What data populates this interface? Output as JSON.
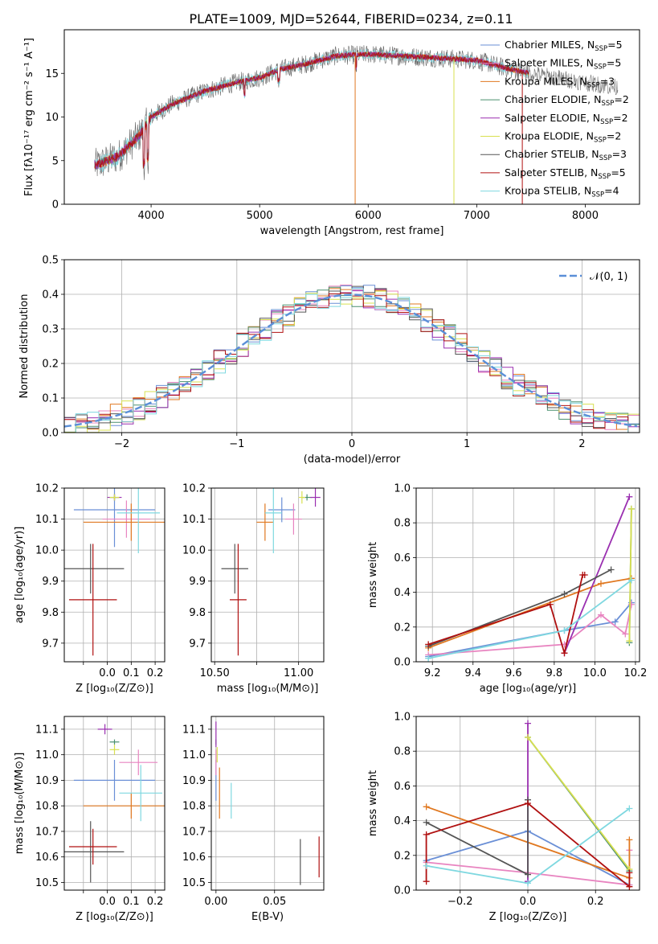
{
  "colors": {
    "chabrier_miles": "#6a8fd6",
    "salpeter_miles": "#e884c0",
    "kroupa_miles": "#e07820",
    "chabrier_elodie": "#4a8f6e",
    "salpeter_elodie": "#9a2fb0",
    "kroupa_elodie": "#d8e050",
    "chabrier_stelib": "#555555",
    "salpeter_stelib": "#b01010",
    "kroupa_stelib": "#7fd8e0",
    "normal_curve": "#5b8fd8",
    "grid": "#b0b0b0"
  },
  "chart_data": [
    {
      "id": "spectrum",
      "type": "line",
      "title": "PLATE=1009, MJD=52644, FIBERID=0234, z=0.11",
      "xlabel": "wavelength [Angstrom, rest frame]",
      "ylabel": "Flux [fλ10⁻¹⁷ erg cm⁻² s⁻¹ A⁻¹]",
      "xlim": [
        3200,
        8500
      ],
      "ylim": [
        0,
        20
      ],
      "xticks": [
        4000,
        5000,
        6000,
        7000,
        8000
      ],
      "yticks": [
        0,
        5,
        10,
        15
      ],
      "grid": false,
      "legend_position": "right",
      "legend": [
        {
          "label": "Chabrier MILES, N",
          "sub": "SSP",
          "suffix": "=5",
          "color_key": "chabrier_miles"
        },
        {
          "label": "Salpeter MILES, N",
          "sub": "SSP",
          "suffix": "=5",
          "color_key": "salpeter_miles"
        },
        {
          "label": "Kroupa MILES, N",
          "sub": "SSP",
          "suffix": "=3",
          "color_key": "kroupa_miles"
        },
        {
          "label": "Chabrier ELODIE, N",
          "sub": "SSP",
          "suffix": "=2",
          "color_key": "chabrier_elodie"
        },
        {
          "label": "Salpeter ELODIE, N",
          "sub": "SSP",
          "suffix": "=2",
          "color_key": "salpeter_elodie"
        },
        {
          "label": "Kroupa ELODIE, N",
          "sub": "SSP",
          "suffix": "=2",
          "color_key": "kroupa_elodie"
        },
        {
          "label": "Chabrier STELIB, N",
          "sub": "SSP",
          "suffix": "=3",
          "color_key": "chabrier_stelib"
        },
        {
          "label": "Salpeter STELIB, N",
          "sub": "SSP",
          "suffix": "=5",
          "color_key": "salpeter_stelib"
        },
        {
          "label": "Kroupa STELIB, N",
          "sub": "SSP",
          "suffix": "=4",
          "color_key": "kroupa_stelib"
        }
      ],
      "continuum_x": [
        3500,
        3700,
        3900,
        4000,
        4200,
        4500,
        4800,
        5000,
        5200,
        5400,
        5700,
        6000,
        6300,
        6600,
        7000,
        7300,
        7500
      ],
      "continuum_y": [
        4.5,
        5.5,
        8,
        10,
        11.5,
        13,
        14,
        14.5,
        15.5,
        16,
        17,
        17.2,
        17,
        16.8,
        16.5,
        15.5,
        15
      ]
    },
    {
      "id": "residuals",
      "type": "line",
      "xlabel": "(data-model)/error",
      "ylabel": "Normed distribution",
      "xlim": [
        -2.5,
        2.5
      ],
      "ylim": [
        0,
        0.5
      ],
      "xticks": [
        -2,
        -1,
        0,
        1,
        2
      ],
      "xticklabels": [
        "−2",
        "−1",
        "0",
        "1",
        "2"
      ],
      "yticks": [
        0.0,
        0.1,
        0.2,
        0.3,
        0.4,
        0.5
      ],
      "yticklabels": [
        "0.0",
        "0.1",
        "0.2",
        "0.3",
        "0.4",
        "0.5"
      ],
      "grid": true,
      "legend_position": "top-right",
      "legend": [
        {
          "label": "𝒩(0, 1)",
          "color_key": "normal_curve"
        }
      ],
      "curve": {
        "mean": 0,
        "sigma": 1
      }
    },
    {
      "id": "age_vs_z",
      "type": "scatter",
      "xlabel": "Z [log₁₀(Z/Z⊙)]",
      "ylabel": "age  [log₁₀(age/yr)]",
      "xlim": [
        -0.18,
        0.24
      ],
      "ylim": [
        9.64,
        10.2
      ],
      "xticks": [
        -0.1,
        0.0,
        0.1,
        0.2
      ],
      "xticklabels": [
        "",
        "0.0",
        "0.1",
        "0.2"
      ],
      "yticks": [
        9.7,
        9.8,
        9.9,
        10.0,
        10.1,
        10.2
      ],
      "yticklabels": [
        "9.7",
        "9.8",
        "9.9",
        "10.0",
        "10.1",
        "10.2"
      ],
      "grid": true,
      "points": [
        {
          "c": "chabrier_miles",
          "x": 0.03,
          "y": 10.13,
          "xerr": 0.17,
          "yerr": 0.12
        },
        {
          "c": "salpeter_miles",
          "x": 0.08,
          "y": 10.1,
          "xerr": 0.1,
          "yerr": 0.06
        },
        {
          "c": "kroupa_miles",
          "x": 0.1,
          "y": 10.09,
          "xerr": 0.2,
          "yerr": 0.06
        },
        {
          "c": "chabrier_elodie",
          "x": 0.03,
          "y": 10.17,
          "xerr": 0.02,
          "yerr": 0.01
        },
        {
          "c": "salpeter_elodie",
          "x": 0.03,
          "y": 10.17,
          "xerr": 0.03,
          "yerr": 0.01
        },
        {
          "c": "kroupa_elodie",
          "x": 0.03,
          "y": 10.17,
          "xerr": 0.02,
          "yerr": 0.01
        },
        {
          "c": "chabrier_stelib",
          "x": -0.07,
          "y": 9.94,
          "xerr": 0.14,
          "yerr": 0.08
        },
        {
          "c": "salpeter_stelib",
          "x": -0.06,
          "y": 9.84,
          "xerr": 0.1,
          "yerr": 0.18
        },
        {
          "c": "kroupa_stelib",
          "x": 0.13,
          "y": 10.12,
          "xerr": 0.09,
          "yerr": 0.13
        }
      ]
    },
    {
      "id": "age_vs_mass",
      "type": "scatter",
      "xlabel": "mass [log₁₀(M/M⊙)]",
      "xlim": [
        10.48,
        11.15
      ],
      "ylim": [
        9.64,
        10.2
      ],
      "xticks": [
        10.5,
        10.75,
        11.0
      ],
      "xticklabels": [
        "10.50",
        "",
        "11.00"
      ],
      "yticks": [
        9.7,
        9.8,
        9.9,
        10.0,
        10.1,
        10.2
      ],
      "yticklabels": [
        "9.7",
        "9.8",
        "9.9",
        "10.0",
        "10.1",
        "10.2"
      ],
      "grid": true,
      "points": [
        {
          "c": "chabrier_miles",
          "x": 10.9,
          "y": 10.13,
          "xerr": 0.08,
          "yerr": 0.04
        },
        {
          "c": "salpeter_miles",
          "x": 10.97,
          "y": 10.1,
          "xerr": 0.05,
          "yerr": 0.05
        },
        {
          "c": "kroupa_miles",
          "x": 10.8,
          "y": 10.09,
          "xerr": 0.05,
          "yerr": 0.06
        },
        {
          "c": "chabrier_elodie",
          "x": 11.05,
          "y": 10.17,
          "xerr": 0.03,
          "yerr": 0.01
        },
        {
          "c": "salpeter_elodie",
          "x": 11.1,
          "y": 10.17,
          "xerr": 0.03,
          "yerr": 0.03
        },
        {
          "c": "kroupa_elodie",
          "x": 11.02,
          "y": 10.17,
          "xerr": 0.02,
          "yerr": 0.02
        },
        {
          "c": "chabrier_stelib",
          "x": 10.62,
          "y": 9.94,
          "xerr": 0.08,
          "yerr": 0.08
        },
        {
          "c": "salpeter_stelib",
          "x": 10.64,
          "y": 9.84,
          "xerr": 0.05,
          "yerr": 0.18
        },
        {
          "c": "kroupa_stelib",
          "x": 10.85,
          "y": 10.12,
          "xerr": 0.05,
          "yerr": 0.13
        }
      ]
    },
    {
      "id": "massweight_vs_age",
      "type": "line",
      "xlabel": "age  [log₁₀(age/yr)]",
      "ylabel": "mass weight",
      "xlim": [
        9.12,
        10.22
      ],
      "ylim": [
        0,
        1.0
      ],
      "xticks": [
        9.2,
        9.4,
        9.6,
        9.8,
        10.0,
        10.2
      ],
      "xticklabels": [
        "9.2",
        "9.4",
        "9.6",
        "9.8",
        "10.0",
        "10.2"
      ],
      "yticks": [
        0.0,
        0.2,
        0.4,
        0.6,
        0.8,
        1.0
      ],
      "yticklabels": [
        "0.0",
        "0.2",
        "0.4",
        "0.6",
        "0.8",
        "1.0"
      ],
      "grid": true,
      "series": [
        {
          "c": "chabrier_miles",
          "x": [
            9.18,
            9.85,
            10.1,
            10.18
          ],
          "y": [
            0.03,
            0.18,
            0.23,
            0.34
          ]
        },
        {
          "c": "salpeter_miles",
          "x": [
            9.18,
            9.85,
            10.03,
            10.15,
            10.18
          ],
          "y": [
            0.04,
            0.1,
            0.27,
            0.16,
            0.33
          ]
        },
        {
          "c": "kroupa_miles",
          "x": [
            9.18,
            10.03,
            10.18
          ],
          "y": [
            0.08,
            0.45,
            0.48
          ]
        },
        {
          "c": "chabrier_elodie",
          "x": [
            10.17,
            10.18
          ],
          "y": [
            0.11,
            0.88
          ]
        },
        {
          "c": "salpeter_elodie",
          "x": [
            9.85,
            10.17
          ],
          "y": [
            0.05,
            0.95
          ]
        },
        {
          "c": "kroupa_elodie",
          "x": [
            10.17,
            10.18
          ],
          "y": [
            0.12,
            0.88
          ]
        },
        {
          "c": "chabrier_stelib",
          "x": [
            9.18,
            9.85,
            10.08
          ],
          "y": [
            0.09,
            0.39,
            0.53
          ]
        },
        {
          "c": "salpeter_stelib",
          "x": [
            9.18,
            9.78,
            9.85,
            9.94,
            9.95
          ],
          "y": [
            0.1,
            0.33,
            0.05,
            0.5,
            0.5
          ]
        },
        {
          "c": "kroupa_stelib",
          "x": [
            9.18,
            9.85,
            10.18
          ],
          "y": [
            0.02,
            0.18,
            0.47
          ]
        }
      ]
    },
    {
      "id": "mass_vs_z",
      "type": "scatter",
      "xlabel": "Z [log₁₀(Z/Z⊙)]",
      "ylabel": "mass [log₁₀(M/M⊙)]",
      "xlim": [
        -0.18,
        0.24
      ],
      "ylim": [
        10.47,
        11.15
      ],
      "xticks": [
        -0.1,
        0.0,
        0.1,
        0.2
      ],
      "xticklabels": [
        "",
        "0.0",
        "0.1",
        "0.2"
      ],
      "yticks": [
        10.5,
        10.6,
        10.7,
        10.8,
        10.9,
        11.0,
        11.1
      ],
      "yticklabels": [
        "10.5",
        "10.6",
        "10.7",
        "10.8",
        "10.9",
        "11.0",
        "11.1"
      ],
      "grid": true,
      "points": [
        {
          "c": "chabrier_miles",
          "x": 0.03,
          "y": 10.9,
          "xerr": 0.17,
          "yerr": 0.08
        },
        {
          "c": "salpeter_miles",
          "x": 0.13,
          "y": 10.97,
          "xerr": 0.08,
          "yerr": 0.05
        },
        {
          "c": "kroupa_miles",
          "x": 0.1,
          "y": 10.8,
          "xerr": 0.2,
          "yerr": 0.05
        },
        {
          "c": "chabrier_elodie",
          "x": 0.03,
          "y": 11.05,
          "xerr": 0.02,
          "yerr": 0.01
        },
        {
          "c": "salpeter_elodie",
          "x": -0.01,
          "y": 11.1,
          "xerr": 0.03,
          "yerr": 0.02
        },
        {
          "c": "kroupa_elodie",
          "x": 0.03,
          "y": 11.02,
          "xerr": 0.02,
          "yerr": 0.02
        },
        {
          "c": "chabrier_stelib",
          "x": -0.07,
          "y": 10.62,
          "xerr": 0.14,
          "yerr": 0.12
        },
        {
          "c": "salpeter_stelib",
          "x": -0.06,
          "y": 10.64,
          "xerr": 0.1,
          "yerr": 0.07
        },
        {
          "c": "kroupa_stelib",
          "x": 0.14,
          "y": 10.85,
          "xerr": 0.09,
          "yerr": 0.11
        }
      ]
    },
    {
      "id": "mass_vs_ebv",
      "type": "scatter",
      "xlabel": "E(B-V)",
      "xlim": [
        -0.004,
        0.092
      ],
      "ylim": [
        10.47,
        11.15
      ],
      "xticks": [
        0.0,
        0.05
      ],
      "xticklabels": [
        "0.00",
        "0.05"
      ],
      "yticks": [
        10.5,
        10.6,
        10.7,
        10.8,
        10.9,
        11.0,
        11.1
      ],
      "yticklabels": [
        "10.5",
        "10.6",
        "10.7",
        "10.8",
        "10.9",
        "11.0",
        "11.1"
      ],
      "grid": true,
      "points": [
        {
          "c": "chabrier_miles",
          "x": 0.0,
          "y": 10.9,
          "xerr": 0,
          "yerr": 0.08
        },
        {
          "c": "salpeter_miles",
          "x": 0.0,
          "y": 10.97,
          "xerr": 0,
          "yerr": 0.05
        },
        {
          "c": "kroupa_miles",
          "x": 0.003,
          "y": 10.85,
          "xerr": 0,
          "yerr": 0.1
        },
        {
          "c": "chabrier_elodie",
          "x": 0.0,
          "y": 11.05,
          "xerr": 0,
          "yerr": 0.01
        },
        {
          "c": "salpeter_elodie",
          "x": 0.0,
          "y": 11.08,
          "xerr": 0,
          "yerr": 0.05
        },
        {
          "c": "kroupa_elodie",
          "x": 0.001,
          "y": 11.0,
          "xerr": 0,
          "yerr": 0.03
        },
        {
          "c": "chabrier_stelib",
          "x": 0.072,
          "y": 10.58,
          "xerr": 0,
          "yerr": 0.09
        },
        {
          "c": "salpeter_stelib",
          "x": 0.088,
          "y": 10.6,
          "xerr": 0,
          "yerr": 0.08
        },
        {
          "c": "kroupa_stelib",
          "x": 0.013,
          "y": 10.82,
          "xerr": 0,
          "yerr": 0.07
        }
      ]
    },
    {
      "id": "massweight_vs_z",
      "type": "line",
      "xlabel": "Z [log₁₀(Z/Z⊙)]",
      "ylabel": "mass weight",
      "xlim": [
        -0.33,
        0.33
      ],
      "ylim": [
        0,
        1.0
      ],
      "xticks": [
        -0.2,
        0.0,
        0.2
      ],
      "xticklabels": [
        "−0.2",
        "0.0",
        "0.2"
      ],
      "yticks": [
        0.0,
        0.2,
        0.4,
        0.6,
        0.8,
        1.0
      ],
      "yticklabels": [
        "0.0",
        "0.2",
        "0.4",
        "0.6",
        "0.8",
        "1.0"
      ],
      "grid": true,
      "series": [
        {
          "c": "chabrier_miles",
          "x": [
            -0.3,
            0.0,
            0.3
          ],
          "y": [
            0.17,
            0.34,
            0.03
          ]
        },
        {
          "c": "salpeter_miles",
          "x": [
            -0.3,
            0.0,
            0.3,
            0.3
          ],
          "y": [
            0.16,
            0.1,
            0.03,
            0.23
          ]
        },
        {
          "c": "kroupa_miles",
          "x": [
            -0.3,
            0.3,
            0.3
          ],
          "y": [
            0.48,
            0.07,
            0.29
          ]
        },
        {
          "c": "chabrier_elodie",
          "x": [
            0.0,
            0.3
          ],
          "y": [
            0.88,
            0.11
          ]
        },
        {
          "c": "salpeter_elodie",
          "x": [
            0.0,
            0.0
          ],
          "y": [
            0.05,
            0.96
          ]
        },
        {
          "c": "kroupa_elodie",
          "x": [
            0.0,
            0.3
          ],
          "y": [
            0.88,
            0.12
          ]
        },
        {
          "c": "chabrier_stelib",
          "x": [
            -0.3,
            0.0,
            0.0
          ],
          "y": [
            0.39,
            0.09,
            0.52
          ]
        },
        {
          "c": "salpeter_stelib",
          "x": [
            -0.3,
            -0.3,
            0.0,
            0.3,
            0.3
          ],
          "y": [
            0.05,
            0.32,
            0.5,
            0.02,
            0.1
          ]
        },
        {
          "c": "kroupa_stelib",
          "x": [
            -0.3,
            0.0,
            0.3
          ],
          "y": [
            0.14,
            0.04,
            0.47
          ]
        }
      ]
    }
  ]
}
